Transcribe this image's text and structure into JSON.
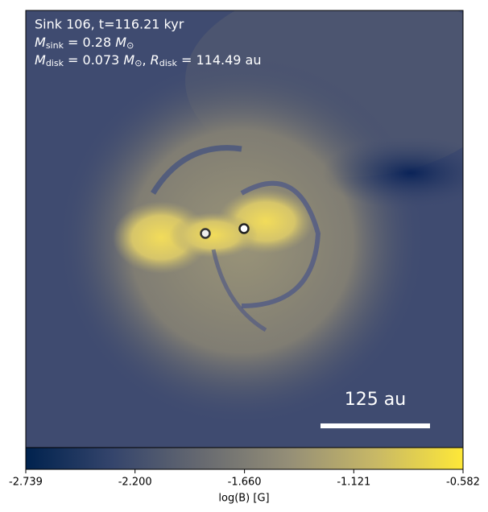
{
  "chart_data": {
    "type": "heatmap",
    "annotation": {
      "line1": "Sink 106, t=116.21 kyr",
      "line2": {
        "symbol": "M",
        "subscript": "sink",
        "rest": " = 0.28 ",
        "unit": "M",
        "unit_subscript": "⊙"
      },
      "line3": {
        "symbol": "M",
        "subscript": "disk",
        "rest": " = 0.073 ",
        "unit": "M",
        "unit_subscript": "⊙",
        "sep": ", ",
        "symbol2": "R",
        "subscript2": "disk",
        "rest2": " = 114.49 au"
      }
    },
    "scale_bar": "125 au",
    "colorbar": {
      "label": "log(B) [G]",
      "colormap": "cividis",
      "xlim": [
        -2.739,
        -0.582
      ],
      "xticks": [
        -2.739,
        {
          "value": -2.2,
          "label": "-2.200"
        },
        {
          "value": -1.66,
          "label": "-1.660"
        },
        -1.121,
        -0.582
      ]
    }
  }
}
